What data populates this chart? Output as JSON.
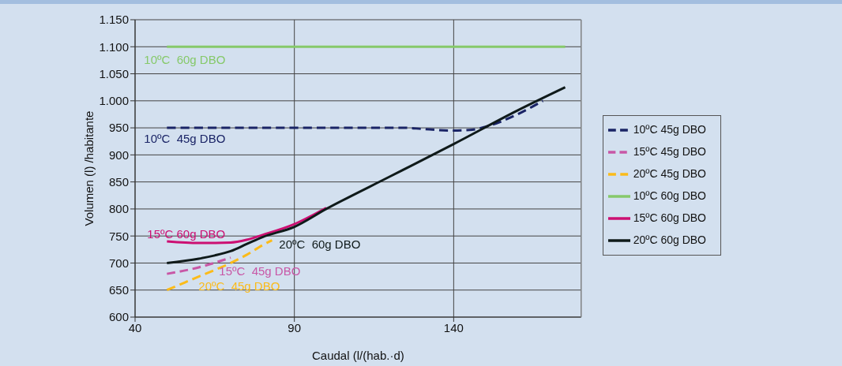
{
  "chart_data": {
    "type": "line",
    "xlabel": "Caudal  (l/(hab.·d)",
    "ylabel": "Volumen (l) /habitante",
    "xlim": [
      40,
      180
    ],
    "xticks": [
      40,
      90,
      140
    ],
    "ylim": [
      600,
      1150
    ],
    "yticks": [
      600,
      650,
      700,
      750,
      800,
      850,
      900,
      950,
      {
        "value": 1000,
        "label": "1.000"
      },
      {
        "value": 1050,
        "label": "1.050"
      },
      {
        "value": 1100,
        "label": "1.100"
      },
      {
        "value": 1150,
        "label": "1.150"
      }
    ],
    "grid": true,
    "legend": "right",
    "marker": "none",
    "series": [
      {
        "name": "10ºC 45g DBO",
        "color": "#1a2466",
        "line_style": "dashed",
        "x": [
          50,
          125,
          130,
          140,
          145,
          150,
          160,
          168
        ],
        "values": [
          950,
          950,
          948,
          945,
          946,
          952,
          975,
          1000
        ]
      },
      {
        "name": "15ºC 45g DBO",
        "color": "#c857a6",
        "line_style": "dashed",
        "x": [
          50,
          60,
          70
        ],
        "values": [
          680,
          692,
          710
        ]
      },
      {
        "name": "20ºC 45g DBO",
        "color": "#fbbb1a",
        "line_style": "dashed",
        "x": [
          50,
          60,
          70,
          75,
          80,
          83
        ],
        "values": [
          650,
          675,
          700,
          715,
          733,
          742
        ]
      },
      {
        "name": "10ºC 60g DBO",
        "color": "#86c96a",
        "line_style": "solid",
        "x": [
          50,
          175
        ],
        "values": [
          1100,
          1100
        ]
      },
      {
        "name": "15ºC 60g DBO",
        "color": "#cc0f72",
        "line_style": "solid",
        "x": [
          50,
          60,
          70,
          75,
          80,
          90,
          100
        ],
        "values": [
          740,
          737,
          738,
          743,
          752,
          772,
          802
        ]
      },
      {
        "name": "20ºC 60g DBO",
        "color": "#0f1a1a",
        "line_style": "solid",
        "x": [
          50,
          60,
          65,
          70,
          75,
          80,
          90,
          100,
          120,
          140,
          160,
          175
        ],
        "values": [
          700,
          708,
          714,
          722,
          735,
          748,
          767,
          800,
          860,
          920,
          982,
          1025
        ]
      }
    ],
    "annotations": [
      "10ºC  45g DBO",
      "15ºC  45g DBO",
      "20ºC  45g DBO",
      "10ºC  60g DBO",
      "15ºC 60g DBO",
      "20ºC  60g DBO"
    ]
  }
}
